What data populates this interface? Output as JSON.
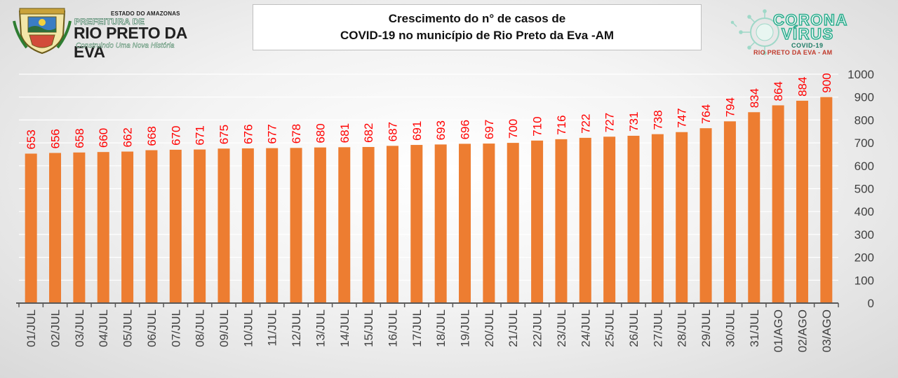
{
  "header": {
    "state": "ESTADO DO AMAZONAS",
    "prefeitura": "PREFEITURA DE",
    "city": "RIO PRETO DA EVA",
    "slogan": "Construindo Uma Nova História",
    "title_line1": "Crescimento do n° de casos de",
    "title_line2": "COVID-19 no município de Rio Preto da Eva -AM",
    "badge_word1": "CORONA",
    "badge_word2": "VÍRUS",
    "badge_sub": "COVID-19",
    "badge_city": "RIO PRETO DA EVA - AM"
  },
  "colors": {
    "bar": "#ed7d31",
    "label": "#ff0000",
    "axis": "#595959",
    "grid": "#ffffff"
  },
  "chart_data": {
    "type": "bar",
    "title": "Crescimento do n° de casos de COVID-19 no município de Rio Preto da Eva -AM",
    "categories": [
      "01/JUL",
      "02/JUL",
      "03/JUL",
      "04/JUL",
      "05/JUL",
      "06/JUL",
      "07/JUL",
      "08/JUL",
      "09/JUL",
      "10/JUL",
      "11/JUL",
      "12/JUL",
      "13/JUL",
      "14/JUL",
      "15/JUL",
      "16/JUL",
      "17/JUL",
      "18/JUL",
      "19/JUL",
      "20/JUL",
      "21/JUL",
      "22/JUL",
      "23/JUL",
      "24/JUL",
      "25/JUL",
      "26/JUL",
      "27/JUL",
      "28/JUL",
      "29/JUL",
      "30/JUL",
      "31/JUL",
      "01/AGO",
      "02/AGO",
      "03/AGO"
    ],
    "values": [
      653,
      656,
      658,
      660,
      662,
      668,
      670,
      671,
      675,
      676,
      677,
      678,
      680,
      681,
      682,
      687,
      691,
      693,
      696,
      697,
      700,
      710,
      716,
      722,
      727,
      731,
      738,
      747,
      764,
      794,
      834,
      864,
      884,
      900
    ],
    "ylim": [
      0,
      1000
    ],
    "yticks": [
      0,
      100,
      200,
      300,
      400,
      500,
      600,
      700,
      800,
      900,
      1000
    ],
    "yaxis_position": "right",
    "grid": true,
    "legend": false,
    "data_labels": true
  }
}
